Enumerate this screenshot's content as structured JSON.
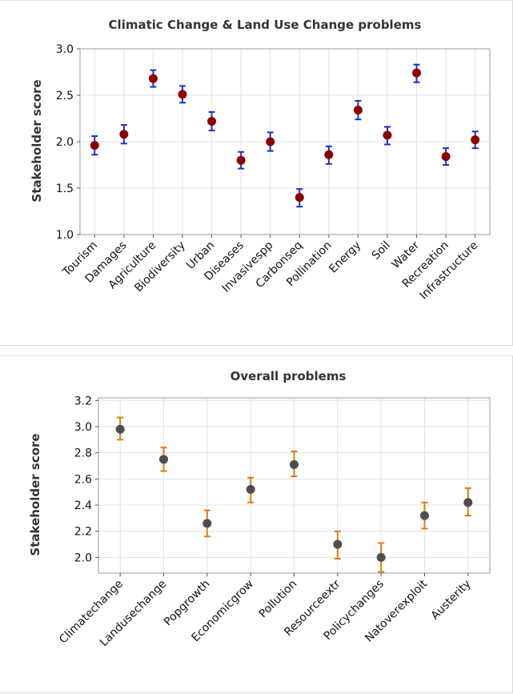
{
  "chart_data": [
    {
      "type": "scatter",
      "title": "Climatic Change & Land Use Change problems",
      "ylabel": "Stakeholder score",
      "xlabel": "",
      "ylim": [
        1.0,
        3.0
      ],
      "yticks": [
        "1.0",
        "1.5",
        "2.0",
        "2.5",
        "3.0"
      ],
      "grid": true,
      "categories": [
        "Tourism",
        "Damages",
        "Agriculture",
        "Biodiversity",
        "Urban",
        "Diseases",
        "Invasivespp",
        "Carbonseq",
        "Pollination",
        "Energy",
        "Soil",
        "Water",
        "Recreation",
        "Infrastructure"
      ],
      "values": [
        1.96,
        2.08,
        2.68,
        2.51,
        2.22,
        1.8,
        2.0,
        1.4,
        1.86,
        2.34,
        2.07,
        2.74,
        1.84,
        2.02
      ],
      "lower": [
        1.86,
        1.98,
        2.59,
        2.42,
        2.12,
        1.71,
        1.9,
        1.3,
        1.76,
        2.24,
        1.97,
        2.64,
        1.75,
        1.93
      ],
      "upper": [
        2.06,
        2.18,
        2.77,
        2.6,
        2.32,
        1.89,
        2.1,
        1.49,
        1.95,
        2.44,
        2.16,
        2.83,
        1.93,
        2.11
      ],
      "point_color": "#8b0000",
      "error_color": "#1f2fc7"
    },
    {
      "type": "scatter",
      "title": "Overall problems",
      "ylabel": "Stakeholder score",
      "xlabel": "",
      "ylim": [
        1.88,
        3.22
      ],
      "yticks": [
        "2.0",
        "2.2",
        "2.4",
        "2.6",
        "2.8",
        "3.0",
        "3.2"
      ],
      "grid": true,
      "categories": [
        "Climatechange",
        "Landusechange",
        "Popgrowth",
        "Economicgrow",
        "Pollution",
        "Resourceextr",
        "Policychanges",
        "Natoverexploit",
        "Austerity"
      ],
      "values": [
        2.98,
        2.75,
        2.26,
        2.52,
        2.71,
        2.1,
        2.0,
        2.32,
        2.42
      ],
      "lower": [
        2.9,
        2.66,
        2.16,
        2.42,
        2.62,
        1.99,
        1.89,
        2.22,
        2.32
      ],
      "upper": [
        3.07,
        2.84,
        2.36,
        2.61,
        2.81,
        2.2,
        2.11,
        2.42,
        2.53
      ],
      "point_color": "#4d4d4d",
      "error_color": "#e07b12"
    }
  ]
}
